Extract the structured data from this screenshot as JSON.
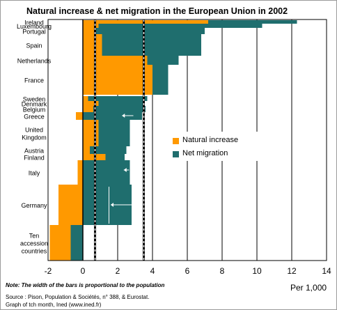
{
  "title": "Natural increase & net migration in the European Union in 2002",
  "notes": {
    "italic": "Note: The width of the bars is proportional to the population",
    "source": "Source : Pison, Population & Sociétés, n° 388, & Eurostat.",
    "graph": "Graph of tch month, Ined (www.ined.fr)"
  },
  "per_label": "Per 1,000",
  "legend": {
    "natural": "Natural increase",
    "net": "Net migration"
  },
  "colors": {
    "natural": "#ff9900",
    "net": "#1f6e6e",
    "grid": "#000000"
  },
  "chart_data": {
    "type": "bar",
    "orientation": "horizontal",
    "stacked": true,
    "title": "Natural increase & net migration in the European Union in 2002",
    "xlabel": "Per 1,000",
    "xlim": [
      -2,
      14
    ],
    "xticks": [
      -2,
      0,
      2,
      4,
      6,
      8,
      10,
      12,
      14
    ],
    "grid": true,
    "legend_position": "center-right",
    "reference_lines": [
      {
        "series": "Natural increase",
        "x": 0.7,
        "style": "dashed"
      },
      {
        "series": "Net migration",
        "x": 3.5,
        "style": "dashed"
      }
    ],
    "categories": [
      {
        "label": "Ireland",
        "natural": 7.2,
        "net": 5.1
      },
      {
        "label": "Luxembourg",
        "natural": 0.9,
        "net": 9.4
      },
      {
        "label": "Portugal",
        "natural": 0.7,
        "net": 6.3
      },
      {
        "label": "Spain",
        "natural": 1.1,
        "net": 5.7
      },
      {
        "label": "Netherlands",
        "natural": 3.7,
        "net": 1.8
      },
      {
        "label": "France",
        "natural": 4.0,
        "net": 0.9
      },
      {
        "label": "Sweden",
        "natural": 0.3,
        "net": 3.4
      },
      {
        "label": "Denmark",
        "natural": 0.9,
        "net": 2.6
      },
      {
        "label": "Belgium",
        "natural": 0.6,
        "net": 3.0
      },
      {
        "label": "Greece",
        "natural": -0.4,
        "net": 3.4
      },
      {
        "label": "United Kingdom",
        "natural": 0.9,
        "net": 1.8
      },
      {
        "label": "Austria",
        "natural": 0.4,
        "net": 2.1
      },
      {
        "label": "Finland",
        "natural": 1.3,
        "net": 1.1
      },
      {
        "label": "Italy",
        "natural": -0.3,
        "net": 2.7
      },
      {
        "label": "Germany",
        "natural": -1.4,
        "net": 2.8
      },
      {
        "label": "Ten accession countries",
        "natural": -1.2,
        "net": -0.7
      }
    ]
  }
}
